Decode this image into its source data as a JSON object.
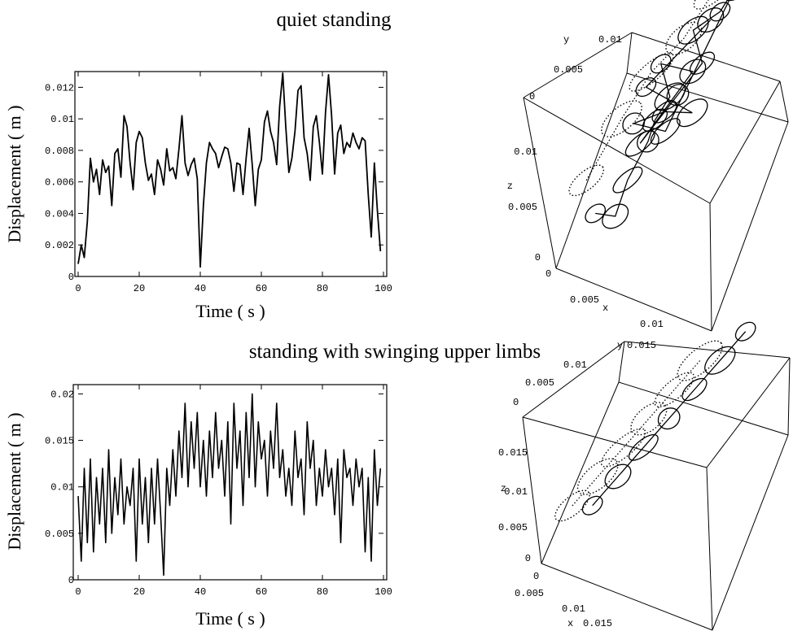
{
  "titles": {
    "top": "quiet standing",
    "bottom": "standing with swinging upper limbs"
  },
  "chart_data": [
    {
      "type": "line",
      "xlabel": "Time ( s )",
      "ylabel": "Displacement ( m )",
      "xlim": [
        0,
        100
      ],
      "ylim": [
        0,
        0.013
      ],
      "xticks": [
        0,
        20,
        40,
        60,
        80,
        100
      ],
      "xtick_labels": [
        "0",
        "20",
        "40",
        "60",
        "80",
        "100"
      ],
      "yticks": [
        0,
        0.002,
        0.004,
        0.006,
        0.008,
        0.01,
        0.012
      ],
      "ytick_labels": [
        "0",
        "0.002",
        "0.004",
        "0.006",
        "0.008",
        "0.01",
        "0.012"
      ],
      "series": [
        {
          "x": [
            0,
            1,
            2,
            3,
            4,
            5,
            6,
            7,
            8,
            9,
            10,
            11,
            12,
            13,
            14,
            15,
            16,
            17,
            18,
            19,
            20,
            21,
            22,
            23,
            24,
            25,
            26,
            27,
            28,
            29,
            30,
            31,
            32,
            33,
            34,
            35,
            36,
            37,
            38,
            39,
            40,
            41,
            42,
            43,
            44,
            45,
            46,
            47,
            48,
            49,
            50,
            51,
            52,
            53,
            54,
            55,
            56,
            57,
            58,
            59,
            60,
            61,
            62,
            63,
            64,
            65,
            66,
            67,
            68,
            69,
            70,
            71,
            72,
            73,
            74,
            75,
            76,
            77,
            78,
            79,
            80,
            81,
            82,
            83,
            84,
            85,
            86,
            87,
            88,
            89,
            90,
            91,
            92,
            93,
            94,
            95,
            96,
            97,
            98,
            99
          ],
          "y": [
            0.0008,
            0.002,
            0.0012,
            0.0035,
            0.0075,
            0.006,
            0.0068,
            0.0052,
            0.0074,
            0.0066,
            0.007,
            0.0045,
            0.0078,
            0.0081,
            0.0063,
            0.0102,
            0.0095,
            0.0072,
            0.0055,
            0.0085,
            0.0092,
            0.0088,
            0.0072,
            0.0061,
            0.0065,
            0.0052,
            0.0074,
            0.0068,
            0.0058,
            0.0081,
            0.0067,
            0.0069,
            0.0062,
            0.0081,
            0.0102,
            0.0072,
            0.0064,
            0.0071,
            0.0075,
            0.0062,
            0.0006,
            0.0045,
            0.0072,
            0.0085,
            0.0081,
            0.0078,
            0.0069,
            0.0076,
            0.0082,
            0.0081,
            0.0072,
            0.0054,
            0.0072,
            0.0071,
            0.0052,
            0.0075,
            0.0094,
            0.0071,
            0.0045,
            0.0068,
            0.0074,
            0.0098,
            0.0105,
            0.0092,
            0.0085,
            0.0071,
            0.0108,
            0.0129,
            0.0095,
            0.0066,
            0.0075,
            0.0092,
            0.0118,
            0.0121,
            0.0088,
            0.0078,
            0.0061,
            0.0095,
            0.0102,
            0.0085,
            0.0065,
            0.0104,
            0.0128,
            0.0102,
            0.0065,
            0.0091,
            0.0096,
            0.0078,
            0.0085,
            0.0082,
            0.0091,
            0.0085,
            0.0081,
            0.0088,
            0.0086,
            0.0052,
            0.0025,
            0.0072,
            0.0042,
            0.0016
          ]
        }
      ]
    },
    {
      "type": "scatter",
      "projection": "3d",
      "xlabel": "x",
      "ylabel": "y",
      "zlabel": "z",
      "x_tick_labels": [
        "0",
        "0.005",
        "0.01"
      ],
      "y_tick_labels": [
        "0",
        "0.005",
        "0.01"
      ],
      "z_tick_labels": [
        "0",
        "0.005",
        "0.01"
      ],
      "xlim": [
        0,
        0.013
      ],
      "ylim": [
        0,
        0.013
      ],
      "zlim": [
        0,
        0.013
      ],
      "series": [
        {
          "style": "solid",
          "points": [
            [
              0.003,
              0.002,
              0.003
            ],
            [
              0.004,
              0.003,
              0.002
            ],
            [
              0.005,
              0.004,
              0.004
            ],
            [
              0.006,
              0.006,
              0.005
            ],
            [
              0.007,
              0.006,
              0.007
            ],
            [
              0.008,
              0.007,
              0.008
            ],
            [
              0.007,
              0.008,
              0.009
            ],
            [
              0.009,
              0.009,
              0.008
            ],
            [
              0.006,
              0.005,
              0.006
            ],
            [
              0.008,
              0.008,
              0.007
            ],
            [
              0.01,
              0.009,
              0.009
            ],
            [
              0.009,
              0.01,
              0.01
            ],
            [
              0.011,
              0.011,
              0.011
            ],
            [
              0.012,
              0.012,
              0.012
            ],
            [
              0.007,
              0.007,
              0.005
            ],
            [
              0.005,
              0.006,
              0.006
            ],
            [
              0.008,
              0.006,
              0.008
            ],
            [
              0.009,
              0.008,
              0.006
            ],
            [
              0.006,
              0.007,
              0.008
            ],
            [
              0.01,
              0.011,
              0.01
            ]
          ]
        },
        {
          "style": "dotted",
          "points": [
            [
              0.002,
              0.003,
              0.004
            ],
            [
              0.004,
              0.006,
              0.006
            ],
            [
              0.006,
              0.008,
              0.008
            ],
            [
              0.008,
              0.01,
              0.009
            ],
            [
              0.01,
              0.012,
              0.011
            ]
          ]
        }
      ]
    },
    {
      "type": "line",
      "xlabel": "Time ( s )",
      "ylabel": "Displacement ( m )",
      "xlim": [
        0,
        100
      ],
      "ylim": [
        0,
        0.021
      ],
      "xticks": [
        0,
        20,
        40,
        60,
        80,
        100
      ],
      "xtick_labels": [
        "0",
        "20",
        "40",
        "60",
        "80",
        "100"
      ],
      "yticks": [
        0,
        0.005,
        0.01,
        0.015,
        0.02
      ],
      "ytick_labels": [
        "0",
        "0.005",
        "0.01",
        "0.015",
        "0.02"
      ],
      "series": [
        {
          "x": [
            0,
            1,
            2,
            3,
            4,
            5,
            6,
            7,
            8,
            9,
            10,
            11,
            12,
            13,
            14,
            15,
            16,
            17,
            18,
            19,
            20,
            21,
            22,
            23,
            24,
            25,
            26,
            27,
            28,
            29,
            30,
            31,
            32,
            33,
            34,
            35,
            36,
            37,
            38,
            39,
            40,
            41,
            42,
            43,
            44,
            45,
            46,
            47,
            48,
            49,
            50,
            51,
            52,
            53,
            54,
            55,
            56,
            57,
            58,
            59,
            60,
            61,
            62,
            63,
            64,
            65,
            66,
            67,
            68,
            69,
            70,
            71,
            72,
            73,
            74,
            75,
            76,
            77,
            78,
            79,
            80,
            81,
            82,
            83,
            84,
            85,
            86,
            87,
            88,
            89,
            90,
            91,
            92,
            93,
            94,
            95,
            96,
            97,
            98,
            99
          ],
          "y": [
            0.009,
            0.002,
            0.012,
            0.004,
            0.013,
            0.003,
            0.011,
            0.006,
            0.012,
            0.004,
            0.014,
            0.005,
            0.011,
            0.007,
            0.013,
            0.006,
            0.01,
            0.008,
            0.012,
            0.002,
            0.013,
            0.006,
            0.011,
            0.004,
            0.012,
            0.006,
            0.013,
            0.007,
            0.0005,
            0.012,
            0.008,
            0.014,
            0.009,
            0.016,
            0.011,
            0.019,
            0.01,
            0.017,
            0.012,
            0.018,
            0.01,
            0.015,
            0.009,
            0.016,
            0.011,
            0.018,
            0.012,
            0.015,
            0.009,
            0.017,
            0.006,
            0.019,
            0.012,
            0.016,
            0.008,
            0.018,
            0.011,
            0.02,
            0.01,
            0.017,
            0.013,
            0.015,
            0.009,
            0.016,
            0.012,
            0.019,
            0.011,
            0.014,
            0.009,
            0.012,
            0.008,
            0.016,
            0.011,
            0.013,
            0.007,
            0.017,
            0.012,
            0.015,
            0.008,
            0.012,
            0.009,
            0.014,
            0.01,
            0.012,
            0.007,
            0.013,
            0.004,
            0.014,
            0.011,
            0.012,
            0.008,
            0.013,
            0.01,
            0.012,
            0.003,
            0.011,
            0.002,
            0.014,
            0.008,
            0.012
          ]
        }
      ]
    },
    {
      "type": "scatter",
      "projection": "3d",
      "xlabel": "x",
      "ylabel": "y",
      "zlabel": "z",
      "x_tick_labels": [
        "0",
        "0.005",
        "0.01",
        "0.015"
      ],
      "y_tick_labels": [
        "0",
        "0.005",
        "0.01",
        "0.015"
      ],
      "z_tick_labels": [
        "0",
        "0.005",
        "0.01",
        "0.015"
      ],
      "xlim": [
        0,
        0.018
      ],
      "ylim": [
        0,
        0.018
      ],
      "zlim": [
        0,
        0.018
      ],
      "series": [
        {
          "style": "solid",
          "points": [
            [
              0.004,
              0.004,
              0.004
            ],
            [
              0.006,
              0.006,
              0.006
            ],
            [
              0.008,
              0.008,
              0.008
            ],
            [
              0.01,
              0.01,
              0.01
            ],
            [
              0.012,
              0.012,
              0.012
            ],
            [
              0.014,
              0.014,
              0.014
            ],
            [
              0.016,
              0.016,
              0.016
            ]
          ]
        },
        {
          "style": "dotted",
          "points": [
            [
              0.003,
              0.002,
              0.006
            ],
            [
              0.005,
              0.004,
              0.008
            ],
            [
              0.007,
              0.006,
              0.01
            ],
            [
              0.009,
              0.008,
              0.012
            ],
            [
              0.011,
              0.01,
              0.014
            ],
            [
              0.013,
              0.012,
              0.016
            ]
          ]
        }
      ]
    }
  ]
}
